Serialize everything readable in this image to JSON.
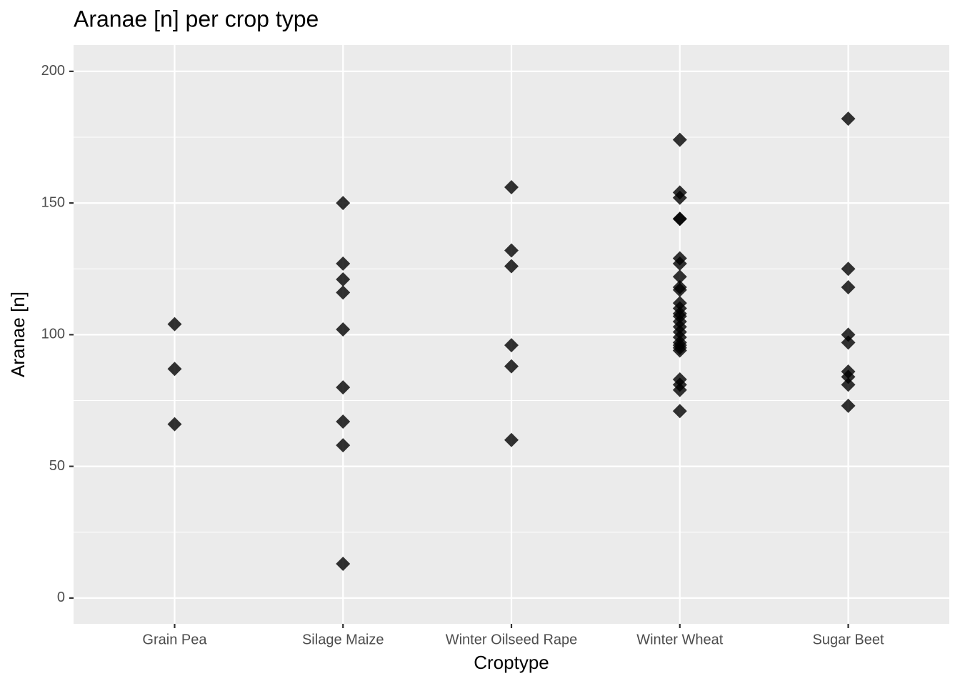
{
  "chart_data": {
    "type": "strip",
    "title": "Aranae [n] per crop type",
    "x_label": "Croptype",
    "y_label": "Aranae [n]",
    "categories": [
      "Grain Pea",
      "Silage Maize",
      "Winter Oilseed Rape",
      "Winter Wheat",
      "Sugar Beet"
    ],
    "values": [
      [
        104,
        87,
        66
      ],
      [
        150,
        127,
        121,
        116,
        102,
        80,
        67,
        58,
        13
      ],
      [
        156,
        132,
        126,
        96,
        88,
        60
      ],
      [
        174,
        154,
        152,
        144,
        144,
        129,
        127,
        122,
        118,
        117,
        112,
        110,
        108,
        107,
        105,
        103,
        101,
        99,
        97,
        96,
        95,
        94,
        83,
        81,
        79,
        71
      ],
      [
        182,
        125,
        118,
        100,
        97,
        86,
        84,
        81,
        73
      ]
    ],
    "color": "#000000",
    "ylim": [
      -9.8,
      210
    ],
    "yticks": [
      0,
      50,
      100,
      150,
      200
    ],
    "minor_yticks": [
      25,
      75,
      125,
      175
    ],
    "grid": true
  }
}
